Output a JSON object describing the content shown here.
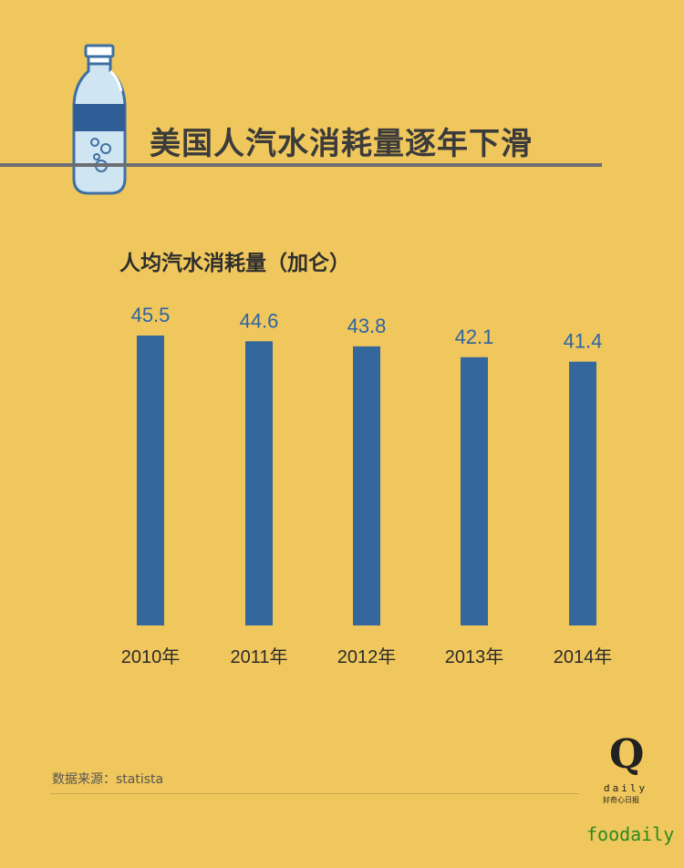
{
  "title": "美国人汽水消耗量逐年下滑",
  "source": "数据来源：statista",
  "logo": {
    "letter": "Q",
    "word": "daily",
    "cn": "好奇心日报"
  },
  "watermark": "foodaily",
  "icon": "soda-bottle-icon",
  "colors": {
    "background": "#f0c75c",
    "bar": "#34679b",
    "value_label": "#2f63a4",
    "rule": "#6b6f73"
  },
  "chart_data": {
    "type": "bar",
    "title": "人均汽水消耗量（加仑）",
    "categories": [
      "2010年",
      "2011年",
      "2012年",
      "2013年",
      "2014年"
    ],
    "values": [
      45.5,
      44.6,
      43.8,
      42.1,
      41.4
    ],
    "xlabel": "",
    "ylabel": "",
    "grid": false
  }
}
